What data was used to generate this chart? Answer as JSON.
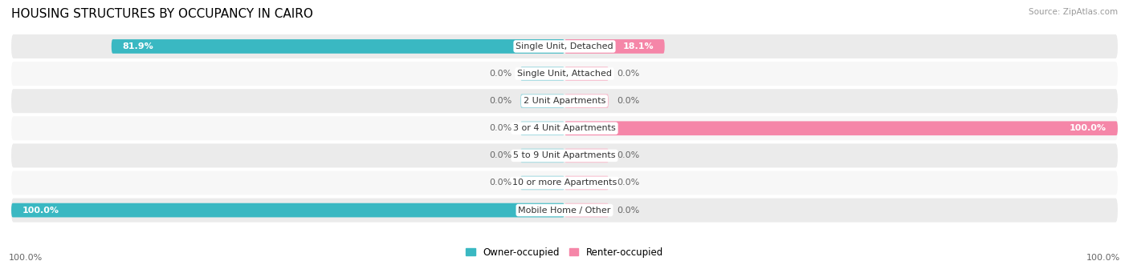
{
  "title": "HOUSING STRUCTURES BY OCCUPANCY IN CAIRO",
  "source": "Source: ZipAtlas.com",
  "categories": [
    "Single Unit, Detached",
    "Single Unit, Attached",
    "2 Unit Apartments",
    "3 or 4 Unit Apartments",
    "5 to 9 Unit Apartments",
    "10 or more Apartments",
    "Mobile Home / Other"
  ],
  "owner_values": [
    81.9,
    0.0,
    0.0,
    0.0,
    0.0,
    0.0,
    100.0
  ],
  "renter_values": [
    18.1,
    0.0,
    0.0,
    100.0,
    0.0,
    0.0,
    0.0
  ],
  "owner_color": "#3ab8c2",
  "renter_color": "#f586a8",
  "owner_color_light": "#a8dce2",
  "renter_color_light": "#f8c0d0",
  "owner_label": "Owner-occupied",
  "renter_label": "Renter-occupied",
  "row_bg_odd": "#ebebeb",
  "row_bg_even": "#f7f7f7",
  "title_fontsize": 11,
  "label_fontsize": 8,
  "value_fontsize": 8,
  "axis_label_left": "100.0%",
  "axis_label_right": "100.0%",
  "max_value": 100.0,
  "bar_height": 0.52,
  "stub_size": 8.0,
  "zero_stub_owner": 8.0,
  "zero_stub_renter": 8.0
}
